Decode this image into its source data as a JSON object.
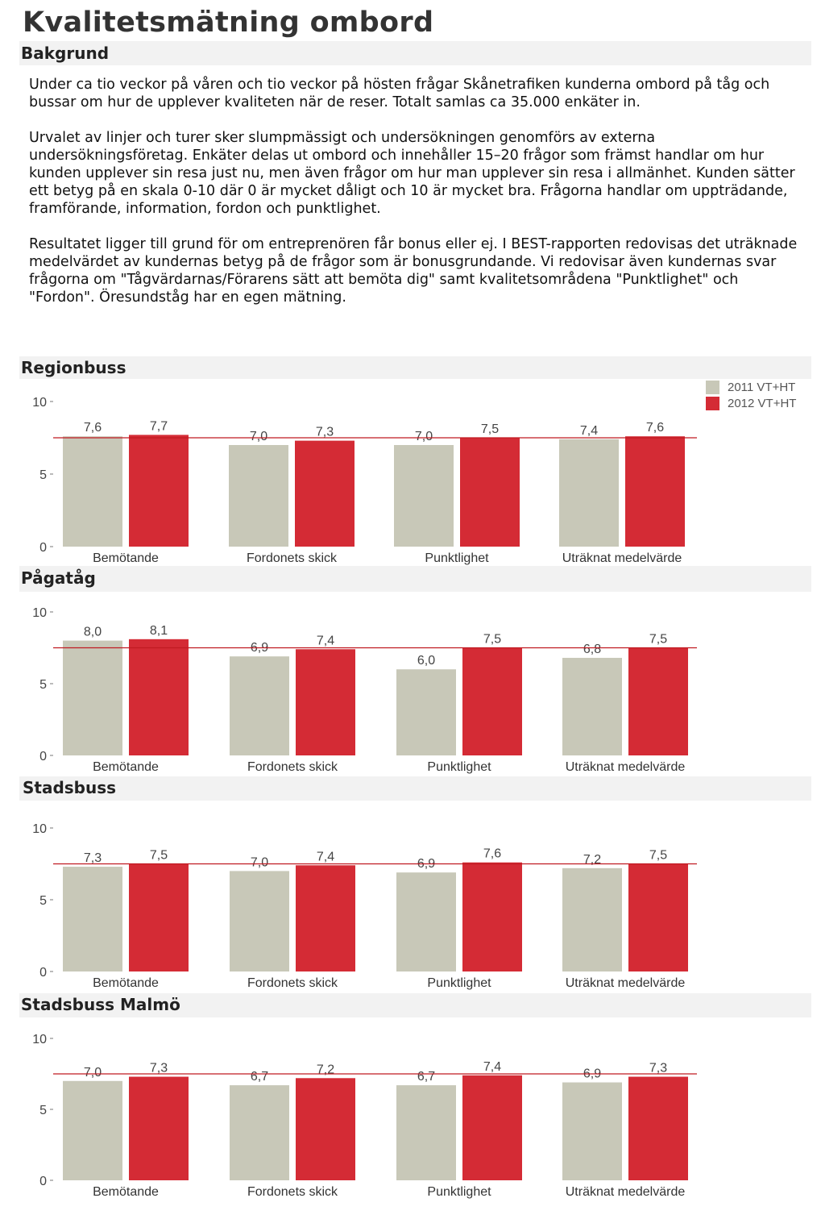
{
  "page": {
    "title": "Kvalitetsmätning ombord",
    "background_heading": "Bakgrund",
    "paragraphs": [
      "Under ca tio veckor på våren och tio veckor på hösten frågar Skånetrafiken kunderna ombord på tåg och bussar om hur de upplever kvaliteten när de reser. Totalt samlas ca 35.000 enkäter in.",
      "Urvalet av linjer och turer sker slumpmässigt och undersökningen genomförs av externa undersökningsföretag. Enkäter delas ut ombord och innehåller 15–20 frågor som främst handlar om hur kunden upplever sin resa just nu, men även frågor om hur man upplever sin resa i allmänhet. Kunden sätter ett betyg på en skala 0-10 där 0 är mycket dåligt och 10 är mycket bra. Frågorna handlar om uppträdande, framförande, information, fordon och punktlighet.",
      "Resultatet ligger till grund för om entreprenören får bonus eller ej. I BEST-rapporten redovisas det uträknade medelvärdet av kundernas betyg på de frågor som är bonusgrundande. Vi redovisar även kundernas svar frågorna om \"Tågvärdarnas/Förarens sätt att bemöta dig\" samt kvalitetsområdena \"Punktlighet\" och \"Fordon\". Öresundståg har en egen mätning."
    ]
  },
  "legend": [
    {
      "name": "2011 VT+HT",
      "color": "#c8c8b8"
    },
    {
      "name": "2012 VT+HT",
      "color": "#d42b35"
    }
  ],
  "chart_data": [
    {
      "type": "bar",
      "title": "Regionbuss",
      "categories": [
        "Bemötande",
        "Fordonets skick",
        "Punktlighet",
        "Uträknat medelvärde"
      ],
      "series": [
        {
          "name": "2011 VT+HT",
          "values": [
            7.6,
            7.0,
            7.0,
            7.4
          ]
        },
        {
          "name": "2012 VT+HT",
          "values": [
            7.7,
            7.3,
            7.5,
            7.6
          ]
        }
      ],
      "value_labels": [
        [
          "7,6",
          "7,0",
          "7,0",
          "7,4"
        ],
        [
          "7,7",
          "7,3",
          "7,5",
          "7,6"
        ]
      ],
      "reference_line": 7.5,
      "ylim": [
        0,
        10
      ],
      "yticks": [
        "0",
        "5",
        "10"
      ]
    },
    {
      "type": "bar",
      "title": "Pågatåg",
      "categories": [
        "Bemötande",
        "Fordonets skick",
        "Punktlighet",
        "Uträknat medelvärde"
      ],
      "series": [
        {
          "name": "2011 VT+HT",
          "values": [
            8.0,
            6.9,
            6.0,
            6.8
          ]
        },
        {
          "name": "2012 VT+HT",
          "values": [
            8.1,
            7.4,
            7.5,
            7.5
          ]
        }
      ],
      "value_labels": [
        [
          "8,0",
          "6,9",
          "6,0",
          "6,8"
        ],
        [
          "8,1",
          "7,4",
          "7,5",
          "7,5"
        ]
      ],
      "reference_line": 7.5,
      "ylim": [
        0,
        10
      ],
      "yticks": [
        "0",
        "5",
        "10"
      ]
    },
    {
      "type": "bar",
      "title": "Stadsbuss",
      "categories": [
        "Bemötande",
        "Fordonets skick",
        "Punktlighet",
        "Uträknat medelvärde"
      ],
      "series": [
        {
          "name": "2011 VT+HT",
          "values": [
            7.3,
            7.0,
            6.9,
            7.2
          ]
        },
        {
          "name": "2012 VT+HT",
          "values": [
            7.5,
            7.4,
            7.6,
            7.5
          ]
        }
      ],
      "value_labels": [
        [
          "7,3",
          "7,0",
          "6,9",
          "7,2"
        ],
        [
          "7,5",
          "7,4",
          "7,6",
          "7,5"
        ]
      ],
      "reference_line": 7.5,
      "ylim": [
        0,
        10
      ],
      "yticks": [
        "0",
        "5",
        "10"
      ]
    },
    {
      "type": "bar",
      "title": "Stadsbuss Malmö",
      "categories": [
        "Bemötande",
        "Fordonets skick",
        "Punktlighet",
        "Uträknat medelvärde"
      ],
      "series": [
        {
          "name": "2011 VT+HT",
          "values": [
            7.0,
            6.7,
            6.7,
            6.9
          ]
        },
        {
          "name": "2012 VT+HT",
          "values": [
            7.3,
            7.2,
            7.4,
            7.3
          ]
        }
      ],
      "value_labels": [
        [
          "7,0",
          "6,7",
          "6,7",
          "6,9"
        ],
        [
          "7,3",
          "7,2",
          "7,4",
          "7,3"
        ]
      ],
      "reference_line": 7.5,
      "ylim": [
        0,
        10
      ],
      "yticks": [
        "0",
        "5",
        "10"
      ]
    }
  ]
}
